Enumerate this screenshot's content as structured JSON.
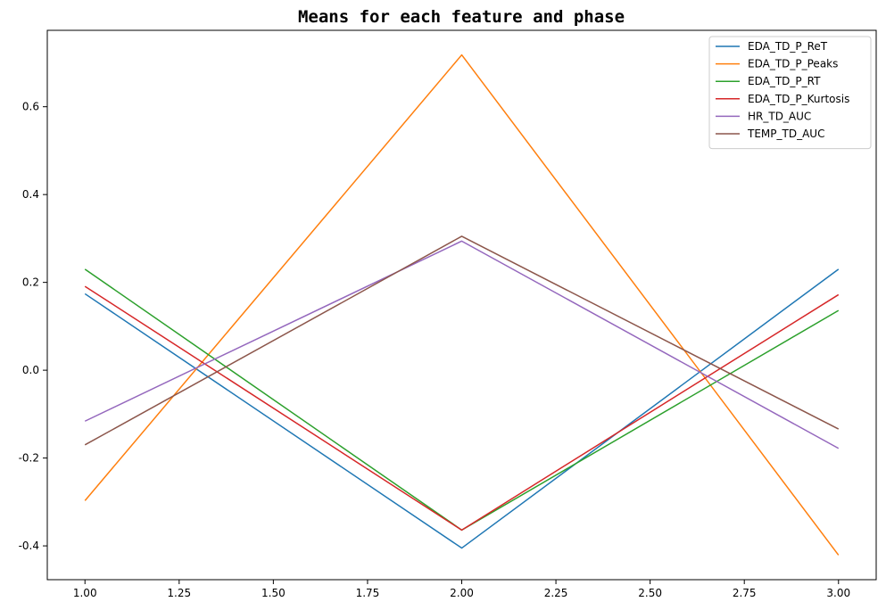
{
  "chart_data": {
    "type": "line",
    "title": "Means for each feature and phase",
    "xlabel": "",
    "ylabel": "",
    "x": [
      1.0,
      2.0,
      3.0
    ],
    "xlim": [
      0.9,
      3.1
    ],
    "ylim": [
      -0.477,
      0.774
    ],
    "xticks": [
      1.0,
      1.25,
      1.5,
      1.75,
      2.0,
      2.25,
      2.5,
      2.75,
      3.0
    ],
    "xtick_labels": [
      "1.00",
      "1.25",
      "1.50",
      "1.75",
      "2.00",
      "2.25",
      "2.50",
      "2.75",
      "3.00"
    ],
    "yticks": [
      -0.4,
      -0.2,
      0.0,
      0.2,
      0.4,
      0.6
    ],
    "ytick_labels": [
      "-0.4",
      "-0.2",
      "0.0",
      "0.2",
      "0.4",
      "0.6"
    ],
    "grid": false,
    "legend_position": "top-right",
    "series": [
      {
        "name": "EDA_TD_P_ReT",
        "color": "#1f77b4",
        "values": [
          0.174,
          -0.405,
          0.23
        ]
      },
      {
        "name": "EDA_TD_P_Peaks",
        "color": "#ff7f0e",
        "values": [
          -0.297,
          0.718,
          -0.421
        ]
      },
      {
        "name": "EDA_TD_P_RT",
        "color": "#2ca02c",
        "values": [
          0.23,
          -0.364,
          0.136
        ]
      },
      {
        "name": "EDA_TD_P_Kurtosis",
        "color": "#d62728",
        "values": [
          0.191,
          -0.364,
          0.172
        ]
      },
      {
        "name": "HR_TD_AUC",
        "color": "#9467bd",
        "values": [
          -0.116,
          0.294,
          -0.178
        ]
      },
      {
        "name": "TEMP_TD_AUC",
        "color": "#8c564b",
        "values": [
          -0.17,
          0.305,
          -0.134
        ]
      }
    ]
  }
}
